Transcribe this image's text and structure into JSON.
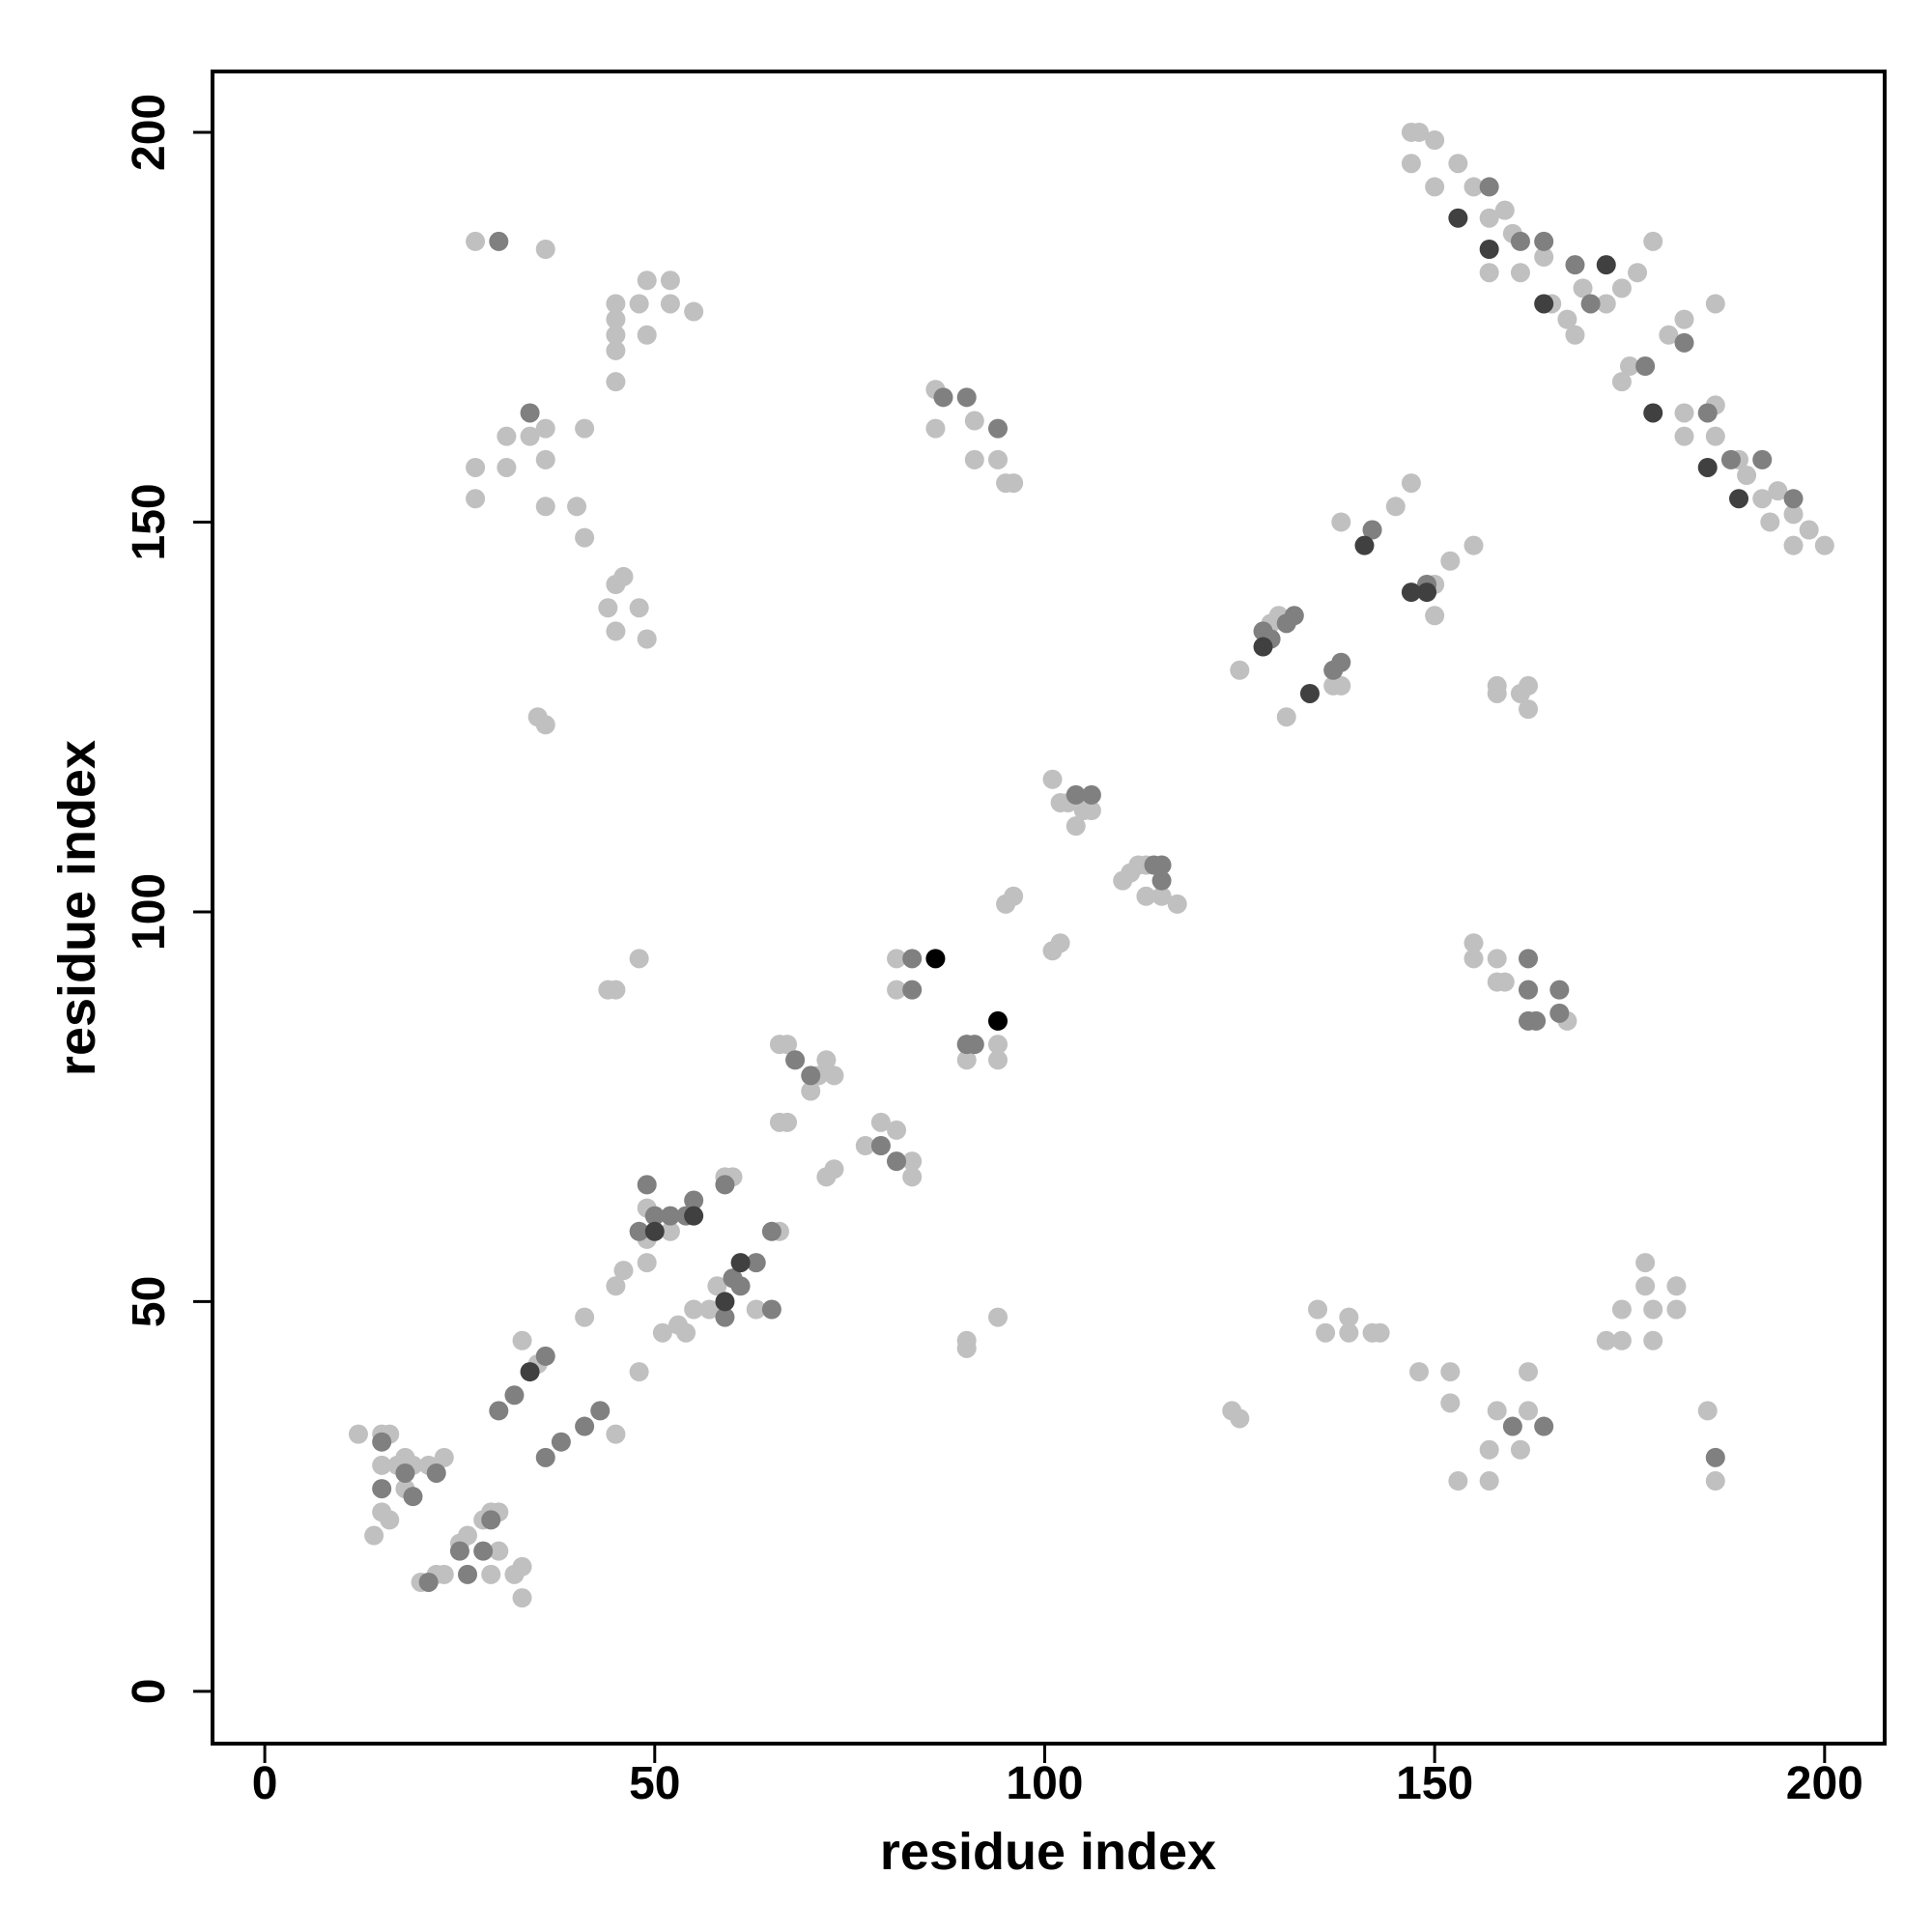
{
  "chart_data": {
    "type": "scatter",
    "x_label": "residue index",
    "y_label": "residue index",
    "xlim": [
      -6.7,
      207.7
    ],
    "ylim": [
      -6.7,
      207.8
    ],
    "xticks": [
      0,
      50,
      100,
      150,
      200
    ],
    "yticks": [
      0,
      50,
      100,
      150,
      200
    ],
    "grid": false,
    "series": [
      {
        "color": "#c0c0c0",
        "x": [
          12,
          15,
          16,
          15,
          17,
          18,
          19,
          21,
          23,
          14,
          15,
          16,
          18,
          20,
          22,
          23,
          25,
          26,
          28,
          29,
          30,
          29,
          30,
          33,
          33,
          32,
          33,
          35,
          41,
          45,
          48,
          34,
          45,
          46,
          49,
          49,
          49,
          52,
          51,
          53,
          54,
          55,
          57,
          58,
          63,
          60,
          59,
          60,
          66,
          66,
          67,
          66,
          67,
          68,
          71,
          72,
          73,
          70,
          72,
          73,
          77,
          79,
          81,
          81,
          83,
          83,
          79,
          81,
          81,
          90,
          90,
          94,
          94,
          95,
          96,
          101,
          102,
          90,
          90,
          94,
          44,
          45,
          48,
          101,
          102,
          103,
          104,
          105,
          106,
          110,
          111,
          113,
          115,
          117,
          113,
          112,
          125,
          129,
          130,
          131,
          137,
          138,
          138,
          142,
          145,
          147,
          149,
          150,
          150,
          152,
          155,
          155,
          155,
          158,
          158,
          159,
          162,
          158,
          158,
          161,
          162,
          162,
          167,
          135,
          136,
          139,
          139,
          142,
          143,
          148,
          152,
          152,
          153,
          157,
          157,
          158,
          161,
          162,
          162,
          172,
          174,
          177,
          177,
          178,
          181,
          181,
          174,
          178,
          185,
          186,
          124,
          125,
          27,
          36,
          27,
          27,
          31,
          31,
          34,
          36,
          36,
          36,
          40,
          41,
          41,
          45,
          45,
          45,
          45,
          45,
          49,
          49,
          48,
          52,
          52,
          55,
          44,
          45,
          46,
          45,
          48,
          49,
          35,
          36,
          86,
          86,
          91,
          91,
          94,
          95,
          96,
          147,
          148,
          150,
          147,
          150,
          153,
          155,
          157,
          159,
          160,
          157,
          161,
          164,
          165,
          167,
          168,
          169,
          172,
          174,
          176,
          178,
          174,
          175,
          180,
          182,
          182,
          182,
          186,
          186,
          189,
          190,
          192,
          194,
          196,
          196,
          198,
          200,
          193,
          186
        ],
        "values": [
          33,
          33,
          33,
          29,
          29,
          30,
          29,
          29,
          30,
          20,
          23,
          22,
          26,
          14,
          15,
          15,
          19,
          20,
          22,
          23,
          23,
          15,
          18,
          16,
          12,
          15,
          45,
          42,
          48,
          33,
          41,
          41,
          52,
          54,
          55,
          58,
          62,
          59,
          46,
          47,
          46,
          49,
          49,
          52,
          49,
          53,
          66,
          66,
          59,
          73,
          73,
          83,
          83,
          81,
          79,
          81,
          79,
          77,
          66,
          67,
          70,
          73,
          72,
          68,
          68,
          66,
          70,
          94,
          90,
          81,
          83,
          81,
          83,
          101,
          102,
          95,
          96,
          45,
          44,
          48,
          90,
          90,
          94,
          117,
          114,
          114,
          111,
          113,
          113,
          104,
          105,
          102,
          102,
          101,
          106,
          106,
          131,
          137,
          138,
          125,
          129,
          129,
          150,
          149,
          152,
          155,
          142,
          142,
          138,
          145,
          147,
          96,
          94,
          94,
          91,
          91,
          90,
          129,
          128,
          128,
          129,
          126,
          86,
          49,
          46,
          48,
          46,
          46,
          46,
          41,
          41,
          37,
          27,
          27,
          31,
          36,
          31,
          41,
          36,
          45,
          49,
          55,
          52,
          49,
          52,
          49,
          45,
          45,
          36,
          27,
          36,
          35,
          186,
          185,
          157,
          153,
          161,
          157,
          161,
          162,
          158,
          152,
          152,
          162,
          148,
          178,
          176,
          174,
          172,
          168,
          181,
          174,
          178,
          181,
          178,
          177,
          139,
          142,
          143,
          136,
          139,
          135,
          125,
          124,
          167,
          162,
          163,
          158,
          158,
          155,
          155,
          200,
          200,
          199,
          196,
          193,
          196,
          193,
          189,
          190,
          187,
          182,
          182,
          184,
          178,
          176,
          174,
          180,
          178,
          180,
          182,
          186,
          168,
          170,
          174,
          176,
          164,
          161,
          165,
          161,
          158,
          156,
          153,
          154,
          151,
          147,
          149,
          147,
          150,
          178
        ]
      },
      {
        "color": "#808080",
        "x": [
          15,
          15,
          18,
          19,
          22,
          25,
          26,
          28,
          29,
          21,
          30,
          32,
          36,
          38,
          36,
          43,
          41,
          49,
          48,
          50,
          52,
          54,
          55,
          59,
          60,
          61,
          63,
          65,
          59,
          65,
          68,
          70,
          79,
          81,
          83,
          83,
          90,
          91,
          30,
          34,
          87,
          90,
          94,
          104,
          106,
          114,
          115,
          115,
          128,
          129,
          131,
          132,
          137,
          138,
          142,
          149,
          162,
          162,
          163,
          166,
          166,
          162,
          160,
          164,
          186,
          157,
          161,
          164,
          168,
          170,
          177,
          182,
          185,
          188,
          192,
          196
        ],
        "values": [
          32,
          26,
          28,
          25,
          28,
          18,
          15,
          18,
          22,
          14,
          36,
          38,
          43,
          32,
          30,
          36,
          34,
          65,
          59,
          61,
          61,
          61,
          63,
          65,
          53,
          52,
          55,
          49,
          48,
          59,
          81,
          79,
          70,
          68,
          94,
          90,
          83,
          83,
          186,
          164,
          166,
          166,
          162,
          115,
          115,
          106,
          104,
          106,
          136,
          135,
          137,
          138,
          131,
          132,
          149,
          142,
          94,
          90,
          86,
          90,
          87,
          86,
          34,
          34,
          30,
          193,
          186,
          186,
          183,
          178,
          170,
          173,
          164,
          158,
          158,
          153
        ]
      },
      {
        "color": "#404040",
        "x": [
          34,
          55,
          61,
          59,
          50,
          128,
          134,
          141,
          147,
          149,
          157,
          164,
          172,
          178,
          185,
          189,
          153
        ],
        "values": [
          41,
          61,
          55,
          50,
          59,
          134,
          128,
          147,
          141,
          141,
          185,
          178,
          183,
          164,
          157,
          153,
          189
        ]
      },
      {
        "color": "#000000",
        "x": [
          86,
          94
        ],
        "values": [
          94,
          86
        ]
      }
    ]
  }
}
